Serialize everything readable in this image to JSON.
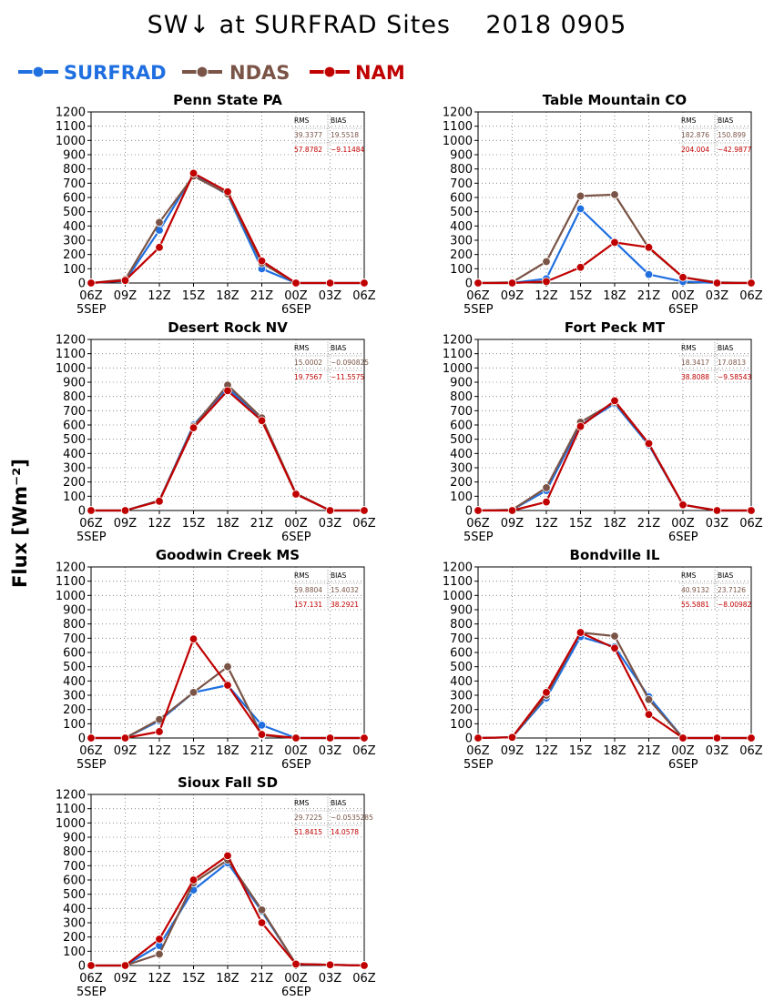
{
  "title": "SW↓ at SURFRAD Sites    2018 0905",
  "ylabel": "Flux [Wm⁻²]",
  "legend": [
    {
      "name": "SURFRAD",
      "color": "#1f6fe0"
    },
    {
      "name": "NDAS",
      "color": "#7a5446"
    },
    {
      "name": "NAM",
      "color": "#c00000"
    }
  ],
  "chart_data": [
    {
      "type": "line",
      "title": "Penn State PA",
      "x": [
        "06Z",
        "09Z",
        "12Z",
        "15Z",
        "18Z",
        "21Z",
        "00Z",
        "03Z",
        "06Z"
      ],
      "x_sublabels": {
        "0": "5SEP",
        "6": "6SEP"
      },
      "ylim": [
        0,
        1200
      ],
      "yticks": [
        0,
        100,
        200,
        300,
        400,
        500,
        600,
        700,
        800,
        900,
        1000,
        1100,
        1200
      ],
      "grid": true,
      "series": [
        {
          "name": "SURFRAD",
          "values": [
            0,
            15,
            370,
            760,
            620,
            100,
            0,
            0,
            0
          ]
        },
        {
          "name": "NDAS",
          "values": [
            0,
            25,
            425,
            750,
            625,
            140,
            0,
            0,
            0
          ]
        },
        {
          "name": "NAM",
          "values": [
            0,
            18,
            250,
            770,
            640,
            155,
            0,
            0,
            0
          ]
        }
      ],
      "stats": {
        "headers": [
          "RMS",
          "BIAS"
        ],
        "rows": [
          {
            "name": "NDAS",
            "values": [
              "39.3377",
              "19.5518"
            ]
          },
          {
            "name": "NAM",
            "values": [
              "57.8782",
              "−9.11484"
            ]
          }
        ]
      }
    },
    {
      "type": "line",
      "title": "Table Mountain CO",
      "x": [
        "06Z",
        "09Z",
        "12Z",
        "15Z",
        "18Z",
        "21Z",
        "00Z",
        "03Z",
        "06Z"
      ],
      "x_sublabels": {
        "0": "5SEP",
        "6": "6SEP"
      },
      "ylim": [
        0,
        1200
      ],
      "yticks": [
        0,
        100,
        200,
        300,
        400,
        500,
        600,
        700,
        800,
        900,
        1000,
        1100,
        1200
      ],
      "grid": true,
      "series": [
        {
          "name": "SURFRAD",
          "values": [
            0,
            0,
            30,
            520,
            290,
            60,
            10,
            0,
            0
          ]
        },
        {
          "name": "NDAS",
          "values": [
            0,
            5,
            150,
            610,
            620,
            245,
            40,
            5,
            0
          ]
        },
        {
          "name": "NAM",
          "values": [
            0,
            0,
            10,
            110,
            285,
            250,
            40,
            0,
            0
          ]
        }
      ],
      "stats": {
        "headers": [
          "RMS",
          "BIAS"
        ],
        "rows": [
          {
            "name": "NDAS",
            "values": [
              "182.876",
              "150.899"
            ]
          },
          {
            "name": "NAM",
            "values": [
              "204.004",
              "−42.9877"
            ]
          }
        ]
      }
    },
    {
      "type": "line",
      "title": "Desert Rock NV",
      "x": [
        "06Z",
        "09Z",
        "12Z",
        "15Z",
        "18Z",
        "21Z",
        "00Z",
        "03Z",
        "06Z"
      ],
      "x_sublabels": {
        "0": "5SEP",
        "6": "6SEP"
      },
      "ylim": [
        0,
        1200
      ],
      "yticks": [
        0,
        100,
        200,
        300,
        400,
        500,
        600,
        700,
        800,
        900,
        1000,
        1100,
        1200
      ],
      "grid": true,
      "series": [
        {
          "name": "SURFRAD",
          "values": [
            0,
            0,
            70,
            600,
            860,
            640,
            115,
            0,
            0
          ]
        },
        {
          "name": "NDAS",
          "values": [
            0,
            0,
            70,
            590,
            880,
            650,
            120,
            0,
            0
          ]
        },
        {
          "name": "NAM",
          "values": [
            0,
            0,
            65,
            580,
            840,
            630,
            115,
            0,
            0
          ]
        }
      ],
      "stats": {
        "headers": [
          "RMS",
          "BIAS"
        ],
        "rows": [
          {
            "name": "NDAS",
            "values": [
              "15.0002",
              "−0.090825"
            ]
          },
          {
            "name": "NAM",
            "values": [
              "19.7567",
              "−11.5575"
            ]
          }
        ]
      }
    },
    {
      "type": "line",
      "title": "Fort Peck MT",
      "x": [
        "06Z",
        "09Z",
        "12Z",
        "15Z",
        "18Z",
        "21Z",
        "00Z",
        "03Z",
        "06Z"
      ],
      "x_sublabels": {
        "0": "5SEP",
        "6": "6SEP"
      },
      "ylim": [
        0,
        1200
      ],
      "yticks": [
        0,
        100,
        200,
        300,
        400,
        500,
        600,
        700,
        800,
        900,
        1000,
        1100,
        1200
      ],
      "grid": true,
      "series": [
        {
          "name": "SURFRAD",
          "values": [
            0,
            5,
            140,
            600,
            750,
            460,
            40,
            0,
            0
          ]
        },
        {
          "name": "NDAS",
          "values": [
            0,
            5,
            160,
            620,
            760,
            470,
            40,
            0,
            0
          ]
        },
        {
          "name": "NAM",
          "values": [
            0,
            0,
            60,
            590,
            770,
            470,
            40,
            0,
            0
          ]
        }
      ],
      "stats": {
        "headers": [
          "RMS",
          "BIAS"
        ],
        "rows": [
          {
            "name": "NDAS",
            "values": [
              "18.3417",
              "17.0813"
            ]
          },
          {
            "name": "NAM",
            "values": [
              "38.8088",
              "−9.58543"
            ]
          }
        ]
      }
    },
    {
      "type": "line",
      "title": "Goodwin Creek MS",
      "x": [
        "06Z",
        "09Z",
        "12Z",
        "15Z",
        "18Z",
        "21Z",
        "00Z",
        "03Z",
        "06Z"
      ],
      "x_sublabels": {
        "0": "5SEP",
        "6": "6SEP"
      },
      "ylim": [
        0,
        1200
      ],
      "yticks": [
        0,
        100,
        200,
        300,
        400,
        500,
        600,
        700,
        800,
        900,
        1000,
        1100,
        1200
      ],
      "grid": true,
      "series": [
        {
          "name": "SURFRAD",
          "values": [
            0,
            0,
            120,
            320,
            370,
            90,
            0,
            0,
            0
          ]
        },
        {
          "name": "NDAS",
          "values": [
            0,
            0,
            130,
            320,
            500,
            20,
            0,
            0,
            0
          ]
        },
        {
          "name": "NAM",
          "values": [
            0,
            0,
            45,
            695,
            370,
            25,
            0,
            0,
            0
          ]
        }
      ],
      "stats": {
        "headers": [
          "RMS",
          "BIAS"
        ],
        "rows": [
          {
            "name": "NDAS",
            "values": [
              "59.8804",
              "15.4032"
            ]
          },
          {
            "name": "NAM",
            "values": [
              "157.131",
              "38.2921"
            ]
          }
        ]
      }
    },
    {
      "type": "line",
      "title": "Bondville IL",
      "x": [
        "06Z",
        "09Z",
        "12Z",
        "15Z",
        "18Z",
        "21Z",
        "00Z",
        "03Z",
        "06Z"
      ],
      "x_sublabels": {
        "0": "5SEP",
        "6": "6SEP"
      },
      "ylim": [
        0,
        1200
      ],
      "yticks": [
        0,
        100,
        200,
        300,
        400,
        500,
        600,
        700,
        800,
        900,
        1000,
        1100,
        1200
      ],
      "grid": true,
      "series": [
        {
          "name": "SURFRAD",
          "values": [
            0,
            5,
            280,
            710,
            640,
            290,
            0,
            0,
            0
          ]
        },
        {
          "name": "NDAS",
          "values": [
            0,
            5,
            300,
            740,
            715,
            270,
            0,
            0,
            0
          ]
        },
        {
          "name": "NAM",
          "values": [
            0,
            5,
            320,
            740,
            630,
            165,
            0,
            0,
            0
          ]
        }
      ],
      "stats": {
        "headers": [
          "RMS",
          "BIAS"
        ],
        "rows": [
          {
            "name": "NDAS",
            "values": [
              "40.9132",
              "23.7126"
            ]
          },
          {
            "name": "NAM",
            "values": [
              "55.5881",
              "−8.00982"
            ]
          }
        ]
      }
    },
    {
      "type": "line",
      "title": "Sioux Fall SD",
      "x": [
        "06Z",
        "09Z",
        "12Z",
        "15Z",
        "18Z",
        "21Z",
        "00Z",
        "03Z",
        "06Z"
      ],
      "x_sublabels": {
        "0": "5SEP",
        "6": "6SEP"
      },
      "ylim": [
        0,
        1200
      ],
      "yticks": [
        0,
        100,
        200,
        300,
        400,
        500,
        600,
        700,
        800,
        900,
        1000,
        1100,
        1200
      ],
      "grid": true,
      "series": [
        {
          "name": "SURFRAD",
          "values": [
            0,
            0,
            140,
            530,
            720,
            380,
            10,
            5,
            0
          ]
        },
        {
          "name": "NDAS",
          "values": [
            0,
            0,
            80,
            580,
            740,
            390,
            10,
            5,
            0
          ]
        },
        {
          "name": "NAM",
          "values": [
            0,
            0,
            185,
            600,
            770,
            300,
            10,
            5,
            0
          ]
        }
      ],
      "stats": {
        "headers": [
          "RMS",
          "BIAS"
        ],
        "rows": [
          {
            "name": "NDAS",
            "values": [
              "29.7225",
              "−0.0535285"
            ]
          },
          {
            "name": "NAM",
            "values": [
              "51.8415",
              "14.0578"
            ]
          }
        ]
      }
    }
  ]
}
